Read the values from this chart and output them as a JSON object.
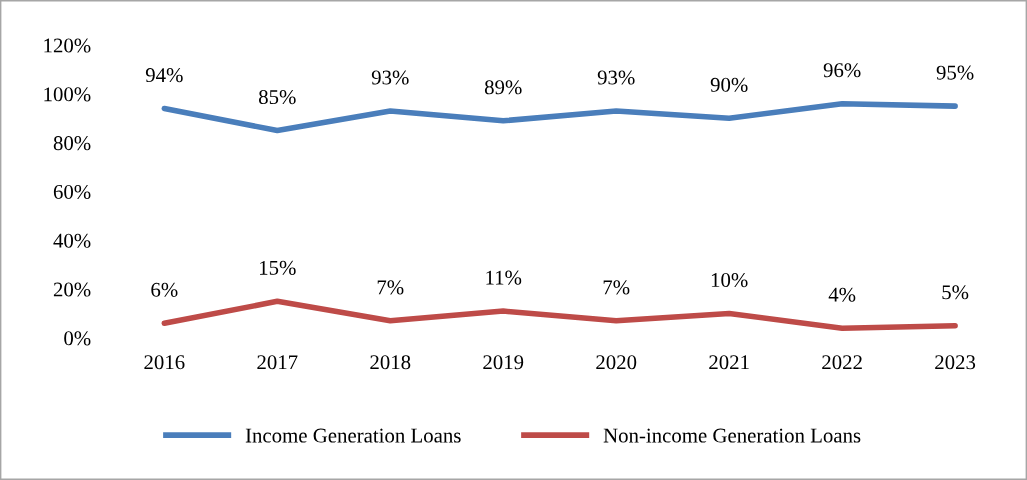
{
  "chart_data": {
    "type": "line",
    "categories": [
      "2016",
      "2017",
      "2018",
      "2019",
      "2020",
      "2021",
      "2022",
      "2023"
    ],
    "series": [
      {
        "name": "Income Generation Loans",
        "color": "#4a7ebb",
        "values": [
          94,
          85,
          93,
          89,
          93,
          90,
          96,
          95
        ],
        "value_labels": [
          "94%",
          "85%",
          "93%",
          "89%",
          "93%",
          "90%",
          "96%",
          "95%"
        ]
      },
      {
        "name": "Non-income Generation Loans",
        "color": "#be4b48",
        "values": [
          6,
          15,
          7,
          11,
          7,
          10,
          4,
          5
        ],
        "value_labels": [
          "6%",
          "15%",
          "7%",
          "11%",
          "7%",
          "10%",
          "4%",
          "5%"
        ]
      }
    ],
    "ylim": [
      0,
      120
    ],
    "yticks": [
      {
        "value": 0,
        "label": "0%"
      },
      {
        "value": 20,
        "label": "20%"
      },
      {
        "value": 40,
        "label": "40%"
      },
      {
        "value": 60,
        "label": "60%"
      },
      {
        "value": 80,
        "label": "80%"
      },
      {
        "value": 100,
        "label": "100%"
      },
      {
        "value": 120,
        "label": "120%"
      }
    ],
    "grid": false,
    "legend": "bottom",
    "marker": "none",
    "line_style": "solid"
  }
}
